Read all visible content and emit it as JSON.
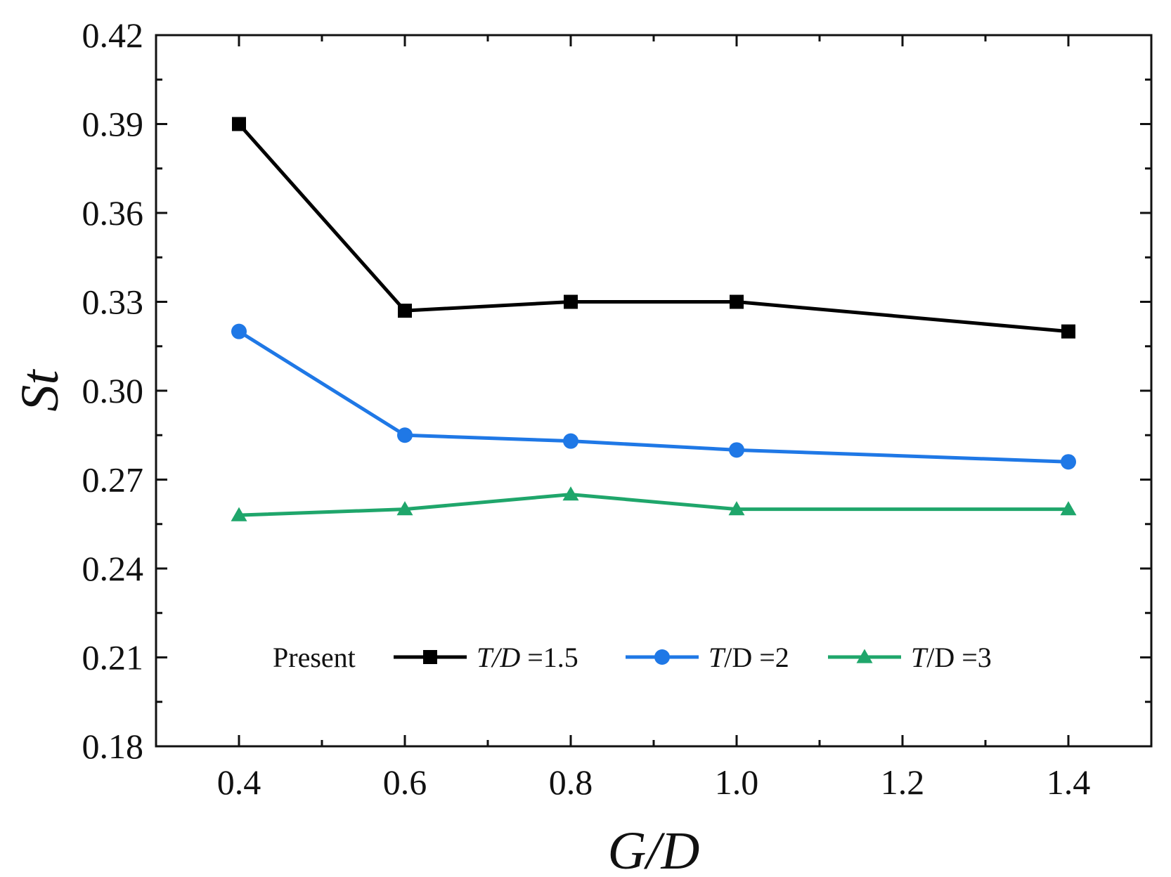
{
  "chart_data": {
    "type": "line",
    "title": "",
    "xlabel": "G/D",
    "ylabel": "St",
    "xlim": [
      0.3,
      1.5
    ],
    "ylim": [
      0.18,
      0.42
    ],
    "x_ticks": [
      "0.4",
      "0.6",
      "0.8",
      "1.0",
      "1.2",
      "1.4"
    ],
    "y_ticks": [
      "0.42",
      "0.39",
      "0.36",
      "0.33",
      "0.30",
      "0.27",
      "0.24",
      "0.21",
      "0.18"
    ],
    "x": [
      0.4,
      0.6,
      0.8,
      1.0,
      1.4
    ],
    "legend_title": "Present",
    "series": [
      {
        "name": "T/D =1.5",
        "name_italic": "T/D",
        "name_rest": " =1.5",
        "color": "#000000",
        "marker": "square",
        "values": [
          0.39,
          0.327,
          0.33,
          0.33,
          0.32
        ]
      },
      {
        "name": "T/D =2",
        "name_italic": "T",
        "name_rest": "/D =2",
        "color": "#1f78e6",
        "marker": "circle",
        "values": [
          0.32,
          0.285,
          0.283,
          0.28,
          0.276
        ]
      },
      {
        "name": "T/D =3",
        "name_italic": "T",
        "name_rest": "/D =3",
        "color": "#1fa66b",
        "marker": "triangle",
        "values": [
          0.258,
          0.26,
          0.265,
          0.26,
          0.26
        ]
      }
    ],
    "grid": false,
    "legend_position": "bottom-center"
  }
}
